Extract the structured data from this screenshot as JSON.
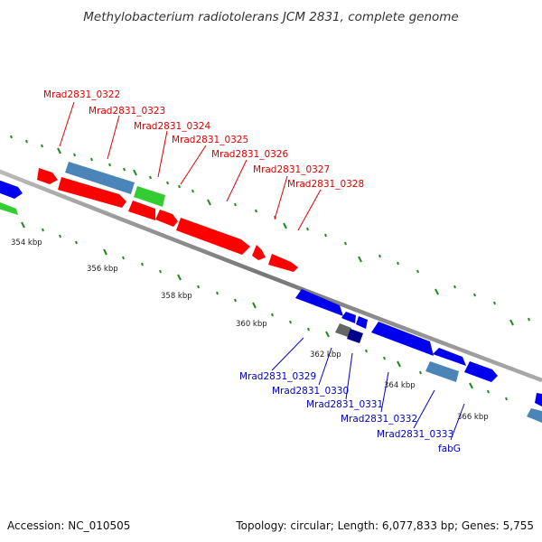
{
  "title": "Methylobacterium radiotolerans JCM 2831, complete genome",
  "footer": {
    "accession": "Accession: NC_010505",
    "summary": "Topology: circular; Length: 6,077,833 bp; Genes: 5,755"
  },
  "colors": {
    "plus_label": "#dd0000",
    "minus_label": "#0000cc",
    "gene_red": "#ff0000",
    "gene_blue": "#0000ee",
    "gene_green": "#33cc33",
    "gene_steelblue": "#4a84b8",
    "gene_gray": "#666666",
    "gene_navy": "#00008b",
    "backbone": "#888888",
    "ticks": "#228b22"
  },
  "kbp_labels": [
    "354 kbp",
    "356 kbp",
    "358 kbp",
    "360 kbp",
    "362 kbp",
    "364 kbp",
    "366 kbp"
  ],
  "plus_strand_labels": [
    "Mrad2831_0322",
    "Mrad2831_0323",
    "Mrad2831_0324",
    "Mrad2831_0325",
    "Mrad2831_0326",
    "Mrad2831_0327",
    "Mrad2831_0328"
  ],
  "minus_strand_labels": [
    "Mrad2831_0329",
    "Mrad2831_0330",
    "Mrad2831_0331",
    "Mrad2831_0332",
    "Mrad2831_0333",
    "fabG"
  ]
}
